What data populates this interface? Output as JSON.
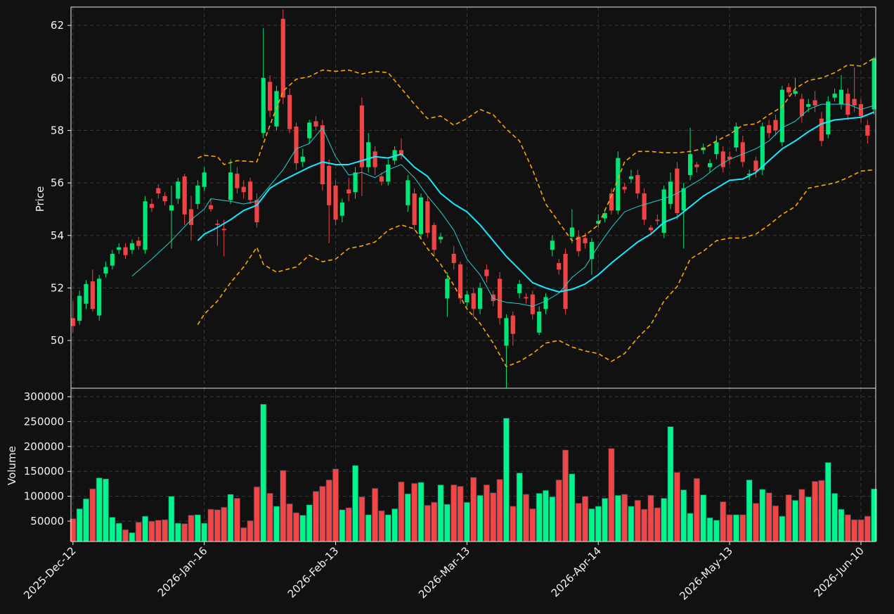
{
  "chart_data": {
    "type": "candlestick",
    "categories": [
      "2025-Dec-12",
      null,
      null,
      null,
      null,
      null,
      null,
      null,
      null,
      null,
      null,
      null,
      null,
      null,
      null,
      null,
      null,
      null,
      null,
      null,
      "2026-Jan-16",
      null,
      null,
      null,
      null,
      null,
      null,
      null,
      null,
      null,
      null,
      null,
      null,
      null,
      null,
      null,
      null,
      null,
      null,
      null,
      "2026-Feb-13",
      null,
      null,
      null,
      null,
      null,
      null,
      null,
      null,
      null,
      null,
      null,
      null,
      null,
      null,
      null,
      null,
      null,
      null,
      null,
      "2026-Mar-13",
      null,
      null,
      null,
      null,
      null,
      null,
      null,
      null,
      null,
      null,
      null,
      null,
      null,
      null,
      null,
      null,
      null,
      null,
      null,
      "2026-Apr-14",
      null,
      null,
      null,
      null,
      null,
      null,
      null,
      null,
      null,
      null,
      null,
      null,
      null,
      null,
      null,
      null,
      null,
      null,
      null,
      "2026-May-13",
      null,
      null,
      null,
      null,
      null,
      null,
      null,
      null,
      null,
      null,
      null,
      null,
      null,
      null,
      null,
      null,
      null,
      null,
      null,
      "2026-Jun-10",
      null,
      null
    ],
    "open": [
      50.85,
      50.75,
      51.4,
      52.25,
      50.95,
      52.55,
      52.85,
      53.45,
      53.55,
      53.45,
      53.8,
      53.45,
      55.2,
      55.8,
      55.5,
      54.95,
      55.4,
      56.25,
      55.0,
      55.2,
      55.85,
      55.15,
      54.45,
      54.25,
      55.35,
      56.35,
      55.85,
      56.05,
      55.35,
      57.9,
      59.85,
      58.15,
      62.25,
      59.35,
      58.15,
      56.8,
      57.7,
      58.35,
      58.2,
      56.65,
      55.9,
      54.75,
      55.75,
      55.65,
      58.95,
      56.6,
      57.2,
      56.25,
      56.05,
      56.85,
      57.25,
      55.15,
      55.6,
      54.05,
      55.3,
      54.4,
      53.85,
      51.6,
      53.3,
      52.9,
      51.45,
      51.8,
      51.2,
      52.7,
      51.75,
      52.35,
      49.8,
      50.95,
      51.8,
      51.65,
      51.75,
      50.3,
      51.2,
      53.45,
      52.95,
      53.3,
      53.95,
      53.95,
      53.9,
      53.1,
      54.45,
      54.65,
      55.6,
      54.95,
      55.85,
      56.15,
      56.3,
      55.6,
      54.3,
      54.6,
      54.1,
      55.2,
      56.55,
      54.95,
      56.3,
      56.7,
      57.25,
      56.6,
      57.1,
      57.2,
      57.0,
      57.35,
      57.55,
      56.3,
      56.85,
      56.5,
      58.2,
      58.4,
      57.55,
      59.65,
      59.4,
      59.2,
      58.9,
      59.15,
      58.45,
      57.85,
      59.25,
      59.0,
      59.4,
      59.2,
      59.0,
      58.2,
      58.8
    ],
    "high": [
      51.5,
      51.9,
      52.3,
      52.7,
      52.5,
      53.0,
      53.45,
      53.7,
      53.7,
      53.85,
      53.95,
      55.5,
      55.4,
      55.95,
      55.65,
      55.9,
      56.2,
      56.35,
      55.5,
      56.1,
      56.6,
      55.4,
      54.6,
      54.6,
      56.9,
      56.6,
      56.1,
      56.2,
      55.6,
      61.9,
      60.1,
      59.7,
      62.6,
      59.6,
      58.3,
      57.3,
      58.4,
      58.55,
      58.4,
      56.9,
      56.1,
      55.4,
      56.2,
      56.6,
      59.25,
      57.9,
      57.4,
      56.4,
      56.9,
      57.4,
      57.7,
      56.3,
      55.8,
      55.6,
      55.5,
      54.5,
      54.1,
      52.6,
      53.6,
      53.0,
      51.9,
      52.0,
      52.2,
      52.9,
      51.9,
      52.6,
      51.0,
      51.1,
      52.3,
      51.8,
      51.9,
      51.3,
      51.8,
      54.0,
      53.1,
      53.5,
      55.0,
      54.2,
      54.1,
      53.9,
      54.8,
      55.0,
      55.8,
      57.2,
      56.0,
      56.5,
      56.5,
      55.8,
      54.4,
      54.8,
      55.9,
      56.4,
      56.8,
      56.0,
      58.1,
      56.8,
      57.5,
      56.9,
      57.8,
      57.4,
      57.2,
      58.3,
      57.8,
      56.5,
      57.0,
      58.3,
      58.4,
      58.6,
      59.7,
      59.8,
      60.0,
      59.4,
      59.2,
      59.5,
      58.7,
      59.3,
      59.6,
      60.1,
      59.6,
      60.4,
      59.2,
      58.4,
      60.8
    ],
    "low": [
      50.3,
      50.6,
      51.2,
      51.1,
      50.75,
      52.4,
      52.7,
      53.3,
      53.1,
      53.3,
      53.45,
      53.3,
      54.9,
      55.4,
      55.15,
      53.5,
      55.2,
      54.4,
      53.8,
      55.0,
      55.7,
      54.9,
      53.6,
      53.2,
      55.2,
      55.6,
      55.4,
      55.2,
      54.3,
      57.7,
      58.5,
      58.0,
      59.0,
      57.9,
      56.5,
      56.6,
      57.5,
      58.0,
      55.7,
      53.7,
      54.4,
      54.5,
      55.3,
      55.4,
      55.5,
      56.4,
      56.3,
      55.9,
      55.9,
      56.7,
      56.9,
      54.9,
      54.2,
      53.9,
      53.9,
      53.2,
      53.7,
      50.9,
      52.7,
      51.4,
      51.3,
      50.9,
      51.0,
      52.2,
      51.3,
      50.6,
      48.2,
      49.8,
      51.6,
      51.4,
      50.8,
      50.2,
      51.0,
      53.2,
      52.5,
      51.0,
      53.7,
      53.2,
      53.5,
      52.5,
      54.3,
      54.5,
      54.8,
      54.8,
      55.6,
      56.0,
      55.4,
      54.4,
      54.0,
      54.4,
      53.9,
      55.0,
      54.6,
      53.5,
      56.1,
      56.4,
      57.1,
      56.4,
      56.9,
      56.4,
      56.7,
      57.2,
      56.6,
      56.1,
      56.2,
      56.3,
      57.7,
      57.8,
      57.4,
      59.3,
      59.3,
      58.3,
      58.7,
      58.7,
      57.4,
      57.7,
      59.1,
      58.8,
      58.4,
      58.7,
      58.3,
      57.5,
      58.6
    ],
    "close": [
      50.55,
      51.7,
      52.15,
      51.2,
      52.35,
      52.8,
      53.3,
      53.55,
      53.25,
      53.7,
      53.6,
      55.3,
      55.05,
      55.6,
      55.3,
      55.15,
      56.05,
      54.8,
      54.4,
      55.9,
      56.4,
      55.0,
      54.4,
      54.2,
      56.4,
      55.8,
      55.65,
      55.35,
      54.5,
      60.0,
      58.75,
      59.5,
      59.25,
      58.05,
      56.75,
      57.0,
      58.3,
      58.15,
      55.95,
      55.15,
      54.6,
      55.25,
      55.6,
      56.4,
      56.6,
      57.55,
      56.6,
      56.05,
      56.7,
      57.25,
      57.05,
      56.1,
      54.4,
      55.45,
      54.1,
      53.45,
      53.95,
      52.35,
      52.95,
      51.6,
      51.75,
      51.2,
      52.0,
      52.45,
      51.5,
      50.85,
      50.85,
      50.25,
      52.15,
      51.6,
      51.0,
      51.1,
      51.65,
      53.8,
      52.7,
      51.2,
      54.3,
      53.4,
      53.7,
      53.75,
      54.55,
      54.85,
      54.95,
      56.95,
      55.75,
      56.25,
      55.6,
      54.6,
      54.2,
      54.55,
      55.75,
      56.05,
      54.85,
      55.8,
      57.1,
      56.6,
      57.35,
      56.75,
      57.55,
      56.6,
      56.9,
      58.15,
      56.8,
      56.35,
      56.45,
      58.15,
      57.9,
      58.0,
      59.55,
      59.45,
      59.5,
      58.55,
      59.0,
      58.95,
      57.6,
      59.1,
      59.4,
      59.55,
      58.6,
      58.95,
      58.55,
      57.8,
      60.75
    ],
    "up_color": "#00e676",
    "down_color": "#ef4444",
    "ylabel": "Price",
    "ylim": [
      48.18,
      62.7
    ],
    "yticks": [
      50,
      52,
      54,
      56,
      58,
      60,
      62
    ],
    "grid": true,
    "overlays": [
      {
        "color": "#ffa500",
        "width": 1.6,
        "dashed": true,
        "x": [
          19,
          20,
          22,
          23,
          25,
          28,
          30,
          32,
          34,
          36,
          38,
          40,
          42,
          44,
          46,
          48,
          50,
          52,
          54,
          56,
          58,
          60,
          62,
          64,
          66,
          68,
          70,
          72,
          74,
          76,
          78,
          80,
          82,
          84,
          86,
          88,
          90,
          92,
          94,
          96,
          98,
          100,
          102,
          104,
          106,
          108,
          110,
          112,
          114,
          116,
          118,
          120,
          122
        ],
        "values": [
          56.95,
          57.05,
          57.0,
          56.7,
          56.85,
          56.8,
          58.2,
          59.5,
          59.95,
          60.05,
          60.3,
          60.25,
          60.3,
          60.15,
          60.25,
          60.2,
          59.6,
          59.0,
          58.45,
          58.55,
          58.2,
          58.45,
          58.8,
          58.6,
          58.05,
          57.6,
          56.5,
          55.2,
          54.5,
          53.8,
          54.0,
          54.4,
          55.5,
          56.8,
          57.2,
          57.2,
          57.15,
          57.15,
          57.2,
          57.3,
          57.6,
          57.85,
          58.2,
          58.25,
          58.6,
          58.9,
          59.6,
          59.9,
          60.0,
          60.2,
          60.5,
          60.45,
          60.75
        ]
      },
      {
        "color": "#ffa500",
        "width": 1.6,
        "dashed": true,
        "x": [
          19,
          20,
          22,
          24,
          26,
          28,
          29,
          31,
          34,
          36,
          38,
          40,
          42,
          44,
          46,
          48,
          50,
          52,
          54,
          56,
          58,
          60,
          62,
          64,
          66,
          68,
          70,
          72,
          74,
          76,
          78,
          80,
          82,
          84,
          86,
          88,
          90,
          92,
          94,
          96,
          98,
          100,
          102,
          104,
          106,
          108,
          110,
          112,
          114,
          116,
          118,
          120,
          122
        ],
        "values": [
          50.6,
          51.0,
          51.5,
          52.2,
          52.8,
          53.55,
          52.9,
          52.6,
          52.8,
          53.25,
          53.0,
          53.1,
          53.5,
          53.6,
          53.75,
          54.2,
          54.4,
          54.25,
          53.5,
          52.9,
          52.1,
          51.2,
          50.65,
          49.9,
          49.0,
          49.2,
          49.5,
          49.9,
          50.0,
          49.75,
          49.6,
          49.5,
          49.2,
          49.5,
          50.1,
          50.6,
          51.5,
          52.05,
          53.1,
          53.4,
          53.8,
          53.9,
          53.9,
          54.05,
          54.4,
          54.8,
          55.1,
          55.8,
          55.9,
          56.0,
          56.2,
          56.45,
          56.5
        ]
      },
      {
        "color": "#26d0ce",
        "width": 1,
        "dashed": false,
        "x": [
          9,
          12,
          15,
          18,
          20,
          21,
          24,
          26,
          28,
          30,
          32,
          34,
          36,
          38,
          40,
          42,
          44,
          46,
          48,
          50,
          52,
          54,
          56,
          58,
          60,
          62,
          64,
          66,
          68,
          70,
          72,
          74,
          76,
          78,
          80,
          82,
          84,
          86,
          88,
          90,
          92,
          94,
          96,
          98,
          100,
          102,
          104,
          106,
          108,
          110,
          112,
          114,
          116,
          118,
          120,
          122
        ],
        "values": [
          52.45,
          53.1,
          53.8,
          54.6,
          55.0,
          55.4,
          55.3,
          55.2,
          55.3,
          55.9,
          56.5,
          57.3,
          57.5,
          58.1,
          57.0,
          56.3,
          56.4,
          56.2,
          56.5,
          56.7,
          56.2,
          55.5,
          54.9,
          54.2,
          53.1,
          52.5,
          51.6,
          51.45,
          51.4,
          51.3,
          51.5,
          51.8,
          52.4,
          52.8,
          53.6,
          54.3,
          54.9,
          55.1,
          55.25,
          55.4,
          55.6,
          55.9,
          56.2,
          56.6,
          56.9,
          57.1,
          57.3,
          57.6,
          58.1,
          58.35,
          58.8,
          59.0,
          59.0,
          59.0,
          58.8,
          58.95
        ]
      },
      {
        "color": "#18e8ff",
        "width": 2,
        "dashed": false,
        "x": [
          19,
          20,
          22,
          24,
          26,
          28,
          30,
          32,
          34,
          36,
          38,
          40,
          42,
          44,
          46,
          48,
          50,
          52,
          54,
          56,
          58,
          60,
          62,
          64,
          66,
          68,
          70,
          72,
          74,
          76,
          78,
          80,
          82,
          84,
          86,
          88,
          90,
          92,
          94,
          96,
          98,
          100,
          102,
          104,
          106,
          108,
          110,
          112,
          114,
          116,
          118,
          120,
          122
        ],
        "values": [
          53.8,
          54.05,
          54.3,
          54.6,
          54.95,
          55.15,
          55.8,
          56.1,
          56.35,
          56.6,
          56.8,
          56.7,
          56.7,
          56.85,
          57.0,
          56.95,
          57.1,
          56.6,
          56.25,
          55.6,
          55.2,
          54.9,
          54.4,
          53.8,
          53.2,
          52.7,
          52.2,
          52.0,
          51.85,
          51.95,
          52.15,
          52.5,
          52.95,
          53.35,
          53.75,
          54.05,
          54.5,
          54.7,
          55.1,
          55.5,
          55.8,
          56.1,
          56.15,
          56.4,
          56.85,
          57.3,
          57.6,
          57.95,
          58.25,
          58.4,
          58.45,
          58.5,
          58.7
        ]
      }
    ],
    "volume": {
      "ylabel": "Volume",
      "values": [
        55000,
        75000,
        95000,
        115000,
        137000,
        135000,
        58000,
        46000,
        33000,
        27000,
        48000,
        60000,
        50000,
        52000,
        53000,
        100000,
        46000,
        45000,
        62000,
        63000,
        46000,
        74000,
        73000,
        78000,
        104000,
        96000,
        37000,
        51000,
        119000,
        285000,
        106000,
        80000,
        152000,
        85000,
        67000,
        62000,
        83000,
        110000,
        120000,
        133000,
        155000,
        73000,
        77000,
        162000,
        99000,
        63000,
        116000,
        71000,
        63000,
        75000,
        129000,
        105000,
        126000,
        128000,
        82000,
        88000,
        123000,
        84000,
        123000,
        120000,
        88000,
        138000,
        102000,
        123000,
        107000,
        134000,
        257000,
        80000,
        147000,
        104000,
        75000,
        106000,
        112000,
        99000,
        133000,
        193000,
        145000,
        86000,
        100000,
        75000,
        80000,
        96000,
        196000,
        102000,
        104000,
        80000,
        92000,
        74000,
        102000,
        77000,
        96000,
        240000,
        148000,
        113000,
        66000,
        136000,
        103000,
        57000,
        52000,
        89000,
        63000,
        63000,
        63000,
        133000,
        86000,
        114000,
        107000,
        81000,
        60000,
        103000,
        92000,
        114000,
        99000,
        130000,
        132000,
        168000,
        106000,
        74000,
        63000,
        53000,
        53000,
        60000,
        115000
      ],
      "up_color": "#00f58a",
      "down_color": "#f04646",
      "ylim": [
        9000,
        317000
      ],
      "yticks": [
        50000,
        100000,
        150000,
        200000,
        250000,
        300000
      ]
    }
  }
}
